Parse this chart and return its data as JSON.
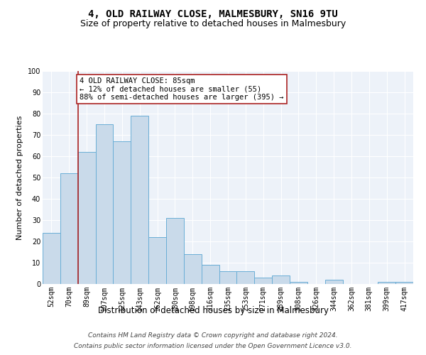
{
  "title": "4, OLD RAILWAY CLOSE, MALMESBURY, SN16 9TU",
  "subtitle": "Size of property relative to detached houses in Malmesbury",
  "xlabel": "Distribution of detached houses by size in Malmesbury",
  "ylabel": "Number of detached properties",
  "categories": [
    "52sqm",
    "70sqm",
    "89sqm",
    "107sqm",
    "125sqm",
    "143sqm",
    "162sqm",
    "180sqm",
    "198sqm",
    "216sqm",
    "235sqm",
    "253sqm",
    "271sqm",
    "289sqm",
    "308sqm",
    "326sqm",
    "344sqm",
    "362sqm",
    "381sqm",
    "399sqm",
    "417sqm"
  ],
  "values": [
    24,
    52,
    62,
    75,
    67,
    79,
    22,
    31,
    14,
    9,
    6,
    6,
    3,
    4,
    1,
    0,
    2,
    0,
    0,
    1,
    1
  ],
  "bar_color": "#c9daea",
  "bar_edge_color": "#6aaed6",
  "vline_color": "#aa2222",
  "vline_x_index": 2,
  "annotation_text": "4 OLD RAILWAY CLOSE: 85sqm\n← 12% of detached houses are smaller (55)\n88% of semi-detached houses are larger (395) →",
  "annotation_box_color": "white",
  "annotation_box_edge": "#aa2222",
  "ylim": [
    0,
    100
  ],
  "yticks": [
    0,
    10,
    20,
    30,
    40,
    50,
    60,
    70,
    80,
    90,
    100
  ],
  "footer_line1": "Contains HM Land Registry data © Crown copyright and database right 2024.",
  "footer_line2": "Contains public sector information licensed under the Open Government Licence v3.0.",
  "background_color": "#edf2f9",
  "grid_color": "white",
  "title_fontsize": 10,
  "subtitle_fontsize": 9,
  "xlabel_fontsize": 8.5,
  "ylabel_fontsize": 8,
  "tick_fontsize": 7,
  "annotation_fontsize": 7.5,
  "footer_fontsize": 6.5
}
